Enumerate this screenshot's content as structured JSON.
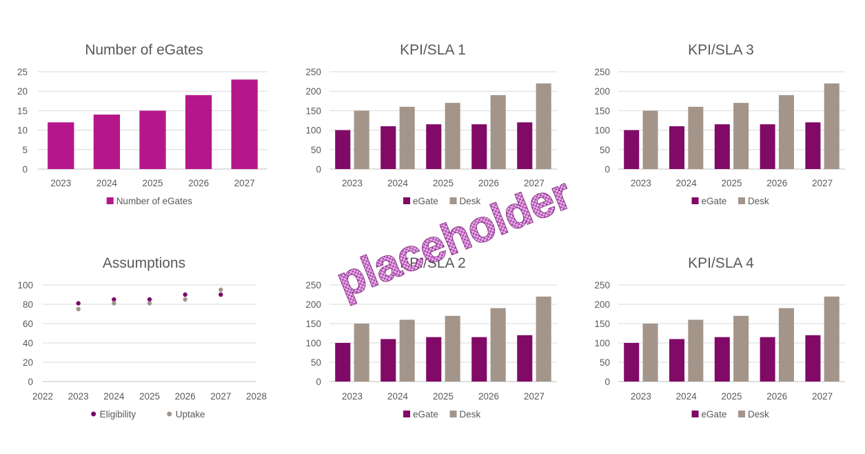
{
  "colors": {
    "magenta": "#b5178b",
    "egate": "#800a66",
    "desk": "#a3958a",
    "eligibility": "#7c0a6a",
    "uptake": "#a3958a",
    "watermark": "#b34eb3"
  },
  "watermark_text": "placeholder",
  "chart_data": [
    {
      "type": "bar",
      "title": "Number of eGates",
      "categories": [
        "2023",
        "2024",
        "2025",
        "2026",
        "2027"
      ],
      "series": [
        {
          "name": "Number of eGates",
          "values": [
            12,
            14,
            15,
            19,
            23
          ],
          "color": "#b5178b"
        }
      ],
      "ylim": [
        0,
        25
      ],
      "yticks": [
        "25",
        "20",
        "15",
        "10",
        "5",
        "0"
      ],
      "grid": true,
      "legend": "bottom"
    },
    {
      "type": "bar",
      "title": "KPI/SLA 1",
      "categories": [
        "2023",
        "2024",
        "2025",
        "2026",
        "2027"
      ],
      "series": [
        {
          "name": "eGate",
          "values": [
            100,
            110,
            115,
            115,
            120
          ],
          "color": "#800a66"
        },
        {
          "name": "Desk",
          "values": [
            150,
            160,
            170,
            190,
            220
          ],
          "color": "#a3958a"
        }
      ],
      "ylim": [
        0,
        250
      ],
      "yticks": [
        "250",
        "200",
        "150",
        "100",
        "50",
        "0"
      ],
      "grid": true,
      "legend": "bottom"
    },
    {
      "type": "bar",
      "title": "KPI/SLA 3",
      "categories": [
        "2023",
        "2024",
        "2025",
        "2026",
        "2027"
      ],
      "series": [
        {
          "name": "eGate",
          "values": [
            100,
            110,
            115,
            115,
            120
          ],
          "color": "#800a66"
        },
        {
          "name": "Desk",
          "values": [
            150,
            160,
            170,
            190,
            220
          ],
          "color": "#a3958a"
        }
      ],
      "ylim": [
        0,
        250
      ],
      "yticks": [
        "250",
        "200",
        "150",
        "100",
        "50",
        "0"
      ],
      "grid": true,
      "legend": "bottom"
    },
    {
      "type": "scatter",
      "title": "Assumptions",
      "xlim": [
        2022,
        2028
      ],
      "xticks": [
        "2022",
        "2023",
        "2024",
        "2025",
        "2026",
        "2027",
        "2028"
      ],
      "series": [
        {
          "name": "Eligibility",
          "x": [
            2023,
            2024,
            2025,
            2026,
            2027
          ],
          "values": [
            81,
            85,
            85,
            90,
            90
          ],
          "color": "#7c0a6a"
        },
        {
          "name": "Uptake",
          "x": [
            2023,
            2024,
            2025,
            2026,
            2027
          ],
          "values": [
            75,
            81,
            81,
            85,
            95
          ],
          "color": "#a3958a"
        }
      ],
      "ylim": [
        0,
        100
      ],
      "yticks": [
        "100",
        "80",
        "60",
        "40",
        "20",
        "0"
      ],
      "grid": true,
      "legend": "bottom"
    },
    {
      "type": "bar",
      "title": "KPI/SLA 2",
      "categories": [
        "2023",
        "2024",
        "2025",
        "2026",
        "2027"
      ],
      "series": [
        {
          "name": "eGate",
          "values": [
            100,
            110,
            115,
            115,
            120
          ],
          "color": "#800a66"
        },
        {
          "name": "Desk",
          "values": [
            150,
            160,
            170,
            190,
            220
          ],
          "color": "#a3958a"
        }
      ],
      "ylim": [
        0,
        250
      ],
      "yticks": [
        "250",
        "200",
        "150",
        "100",
        "50",
        "0"
      ],
      "grid": true,
      "legend": "bottom"
    },
    {
      "type": "bar",
      "title": "KPI/SLA 4",
      "categories": [
        "2023",
        "2024",
        "2025",
        "2026",
        "2027"
      ],
      "series": [
        {
          "name": "eGate",
          "values": [
            100,
            110,
            115,
            115,
            120
          ],
          "color": "#800a66"
        },
        {
          "name": "Desk",
          "values": [
            150,
            160,
            170,
            190,
            220
          ],
          "color": "#a3958a"
        }
      ],
      "ylim": [
        0,
        250
      ],
      "yticks": [
        "250",
        "200",
        "150",
        "100",
        "50",
        "0"
      ],
      "grid": true,
      "legend": "bottom"
    }
  ]
}
